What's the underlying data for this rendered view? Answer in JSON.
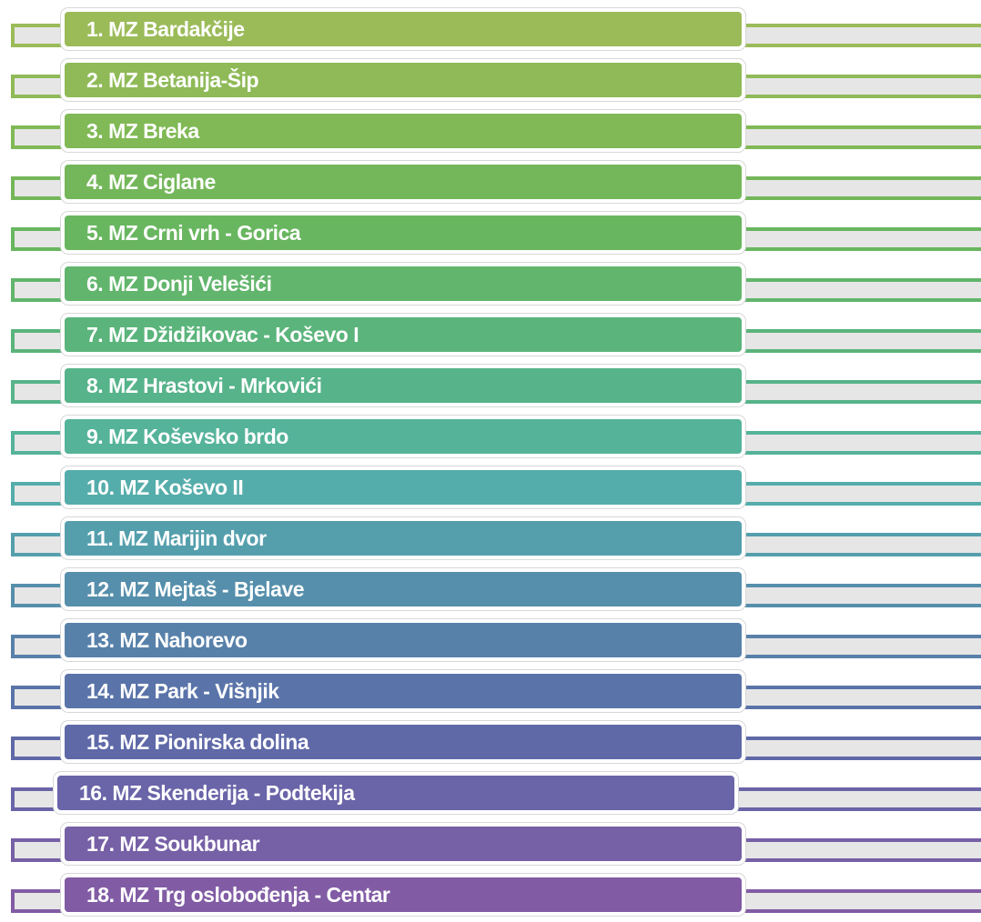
{
  "items": [
    {
      "label": "1. MZ Bardakčije",
      "color": "#9bbb59"
    },
    {
      "label": "2. MZ Betanija-Šip",
      "color": "#8fba57"
    },
    {
      "label": "3. MZ Breka",
      "color": "#80b955"
    },
    {
      "label": "4. MZ Ciglane",
      "color": "#74b75a"
    },
    {
      "label": "5. MZ Crni vrh - Gorica",
      "color": "#68b65f"
    },
    {
      "label": "6. MZ Donji Velešići",
      "color": "#62b56c"
    },
    {
      "label": "7. MZ Džidžikovac - Koševo I",
      "color": "#5bb47b"
    },
    {
      "label": "8. MZ Hrastovi - Mrkovići",
      "color": "#56b38a"
    },
    {
      "label": "9. MZ Koševsko brdo",
      "color": "#55b39a"
    },
    {
      "label": "10. MZ Koševo II",
      "color": "#55adab"
    },
    {
      "label": "11. MZ Marijin dvor",
      "color": "#559fad"
    },
    {
      "label": "12. MZ Mejtaš - Bjelave",
      "color": "#568fab"
    },
    {
      "label": "13. MZ Nahorevo",
      "color": "#5881aa"
    },
    {
      "label": "14. MZ Park - Višnjik",
      "color": "#5a74a9"
    },
    {
      "label": "15. MZ Pionirska dolina",
      "color": "#5f69a8"
    },
    {
      "label": "16. MZ Skenderija - Podtekija",
      "color": "#6a64a8"
    },
    {
      "label": "17. MZ Soukbunar",
      "color": "#7660a6"
    },
    {
      "label": "18. MZ Trg oslobođenja - Centar",
      "color": "#815ca4"
    }
  ]
}
